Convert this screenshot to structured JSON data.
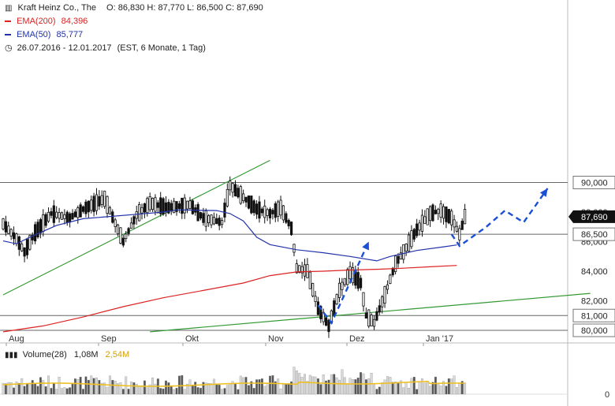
{
  "header": {
    "title": "Kraft Heinz Co., The",
    "ohlc": "O: 86,830  H: 87,770  L: 86,500  C: 87,690",
    "ema200_label": "EMA(200)",
    "ema200_value": "84,396",
    "ema50_label": "EMA(50)",
    "ema50_value": "85,777",
    "period": "26.07.2016 - 12.01.2017",
    "period_detail": "(EST, 6 Monate, 1 Tag)"
  },
  "volume": {
    "label": "Volume(28)",
    "value": "1,08M",
    "avg": "2,54M",
    "zero_label": "0"
  },
  "colors": {
    "ema200": "#dd2222",
    "ema50": "#2233aa",
    "trend": "#339933",
    "projection": "#1a4fd6",
    "volume_avg": "#f0c020",
    "level_line": "#666666",
    "candle": "#111111"
  },
  "chart_data": {
    "type": "candlestick",
    "x_ticks": [
      "Aug",
      "Sep",
      "Okt",
      "Nov",
      "Dez",
      "Jan '17"
    ],
    "y_ticks": [
      80,
      82,
      84,
      86,
      88,
      90
    ],
    "y_labels_boxed": [
      "90,000",
      "86,500",
      "81,000",
      "80,000"
    ],
    "y_labels_plain": [
      "88,000",
      "86,000",
      "84,000",
      "82,000"
    ],
    "last_price_label": "87,690",
    "horizontal_levels": [
      90.0,
      86.5,
      81.0,
      80.0
    ],
    "ylim": [
      79.9,
      91.0
    ],
    "ema200": [
      [
        0,
        79.9
      ],
      [
        15,
        80.3
      ],
      [
        30,
        80.9
      ],
      [
        45,
        81.6
      ],
      [
        60,
        82.2
      ],
      [
        75,
        82.7
      ],
      [
        90,
        83.2
      ],
      [
        100,
        83.7
      ],
      [
        110,
        83.95
      ],
      [
        120,
        84.0
      ],
      [
        130,
        84.08
      ],
      [
        140,
        84.13
      ],
      [
        150,
        84.2
      ],
      [
        160,
        84.3
      ],
      [
        170,
        84.39
      ]
    ],
    "ema50": [
      [
        0,
        86.05
      ],
      [
        5,
        85.85
      ],
      [
        10,
        86.3
      ],
      [
        20,
        87.1
      ],
      [
        30,
        87.55
      ],
      [
        40,
        87.7
      ],
      [
        50,
        87.85
      ],
      [
        60,
        88.0
      ],
      [
        65,
        88.15
      ],
      [
        80,
        88.1
      ],
      [
        85,
        87.9
      ],
      [
        90,
        87.4
      ],
      [
        95,
        86.3
      ],
      [
        100,
        85.8
      ],
      [
        110,
        85.45
      ],
      [
        120,
        85.25
      ],
      [
        130,
        85.0
      ],
      [
        140,
        84.7
      ],
      [
        145,
        85.0
      ],
      [
        155,
        85.4
      ],
      [
        165,
        85.65
      ],
      [
        170,
        85.777
      ]
    ],
    "trend_lines": [
      {
        "from": [
          0,
          82.4
        ],
        "to": [
          100,
          91.5
        ]
      },
      {
        "from": [
          55,
          79.9
        ],
        "to": [
          220,
          82.5
        ]
      }
    ],
    "projection": [
      {
        "path": [
          [
            118,
            81.7
          ],
          [
            123,
            80.5
          ],
          [
            137,
            86.0
          ]
        ],
        "arrow": true
      },
      {
        "path": [
          [
            168,
            86.5
          ],
          [
            171,
            85.7
          ],
          [
            181,
            87.0
          ],
          [
            188,
            88.1
          ],
          [
            195,
            87.3
          ],
          [
            204,
            89.6
          ]
        ],
        "arrow": true
      }
    ]
  }
}
